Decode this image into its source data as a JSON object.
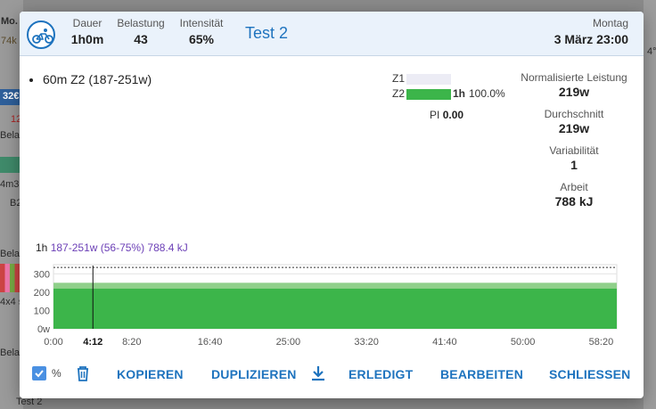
{
  "background": {
    "fragments": [
      "Mo.",
      "74k",
      "32€",
      "12",
      "Bela",
      "4m3",
      "B2",
      "Belas",
      "4x4 s",
      "Bela",
      "Test 2"
    ],
    "right_fragment": "4°"
  },
  "header": {
    "sport_icon": "bike-icon",
    "stats": [
      {
        "label": "Dauer",
        "value": "1h0m"
      },
      {
        "label": "Belastung",
        "value": "43"
      },
      {
        "label": "Intensität",
        "value": "65%"
      }
    ],
    "title": "Test 2",
    "day": "Montag",
    "datetime": "3 März 23:00"
  },
  "steps": [
    "60m Z2 (187-251w)"
  ],
  "zones": [
    {
      "label": "Z1",
      "fraction": 0,
      "time": "",
      "pct": "",
      "color": "#ececf5"
    },
    {
      "label": "Z2",
      "fraction": 1.0,
      "time": "1h",
      "pct": "100.0%",
      "color": "#3cb54a"
    }
  ],
  "pi": {
    "label": "PI",
    "value": "0.00"
  },
  "metrics": [
    {
      "label": "Normalisierte Leistung",
      "value": "219w"
    },
    {
      "label": "Durchschnitt",
      "value": "219w"
    },
    {
      "label": "Variabilität",
      "value": "1"
    },
    {
      "label": "Arbeit",
      "value": "788 kJ"
    }
  ],
  "interval": {
    "duration": "1h",
    "description": "187-251w (56-75%) 788.4 kJ"
  },
  "chart_data": {
    "type": "area",
    "x_ticks": [
      "0:00",
      "4:12",
      "8:20",
      "16:40",
      "25:00",
      "33:20",
      "41:40",
      "50:00",
      "58:20"
    ],
    "x_tick_seconds": [
      0,
      252,
      500,
      1000,
      1500,
      2000,
      2500,
      3000,
      3500
    ],
    "x_max_seconds": 3600,
    "y_ticks": [
      "0w",
      "100",
      "200",
      "300"
    ],
    "y_tick_values": [
      0,
      100,
      200,
      300
    ],
    "ylim": [
      0,
      350
    ],
    "target_range": {
      "low": 187,
      "high": 251
    },
    "power_watts": 219,
    "cursor_seconds": 252,
    "ftp_line_watts": 335,
    "colors": {
      "fill": "#3cb54a",
      "range": "#8fd08a",
      "bg_band": "#e9f5e7"
    }
  },
  "footer": {
    "pct_label": "%",
    "buttons": [
      "KOPIEREN",
      "DUPLIZIEREN",
      "ERLEDIGT",
      "BEARBEITEN",
      "SCHLIESSEN"
    ]
  }
}
